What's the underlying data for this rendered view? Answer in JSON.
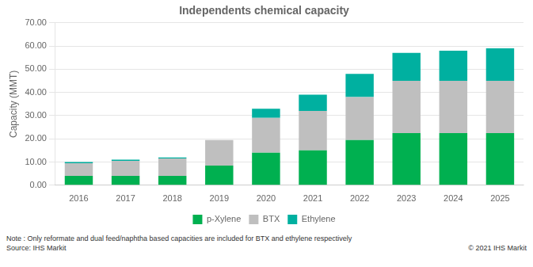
{
  "chart_data": {
    "type": "bar",
    "stacked": true,
    "title": "Independents chemical capacity",
    "ylabel": "Capacity (MMT)",
    "categories": [
      "2016",
      "2017",
      "2018",
      "2019",
      "2020",
      "2021",
      "2022",
      "2023",
      "2024",
      "2025"
    ],
    "series": [
      {
        "name": "p-Xylene",
        "color": "#00b050",
        "values": [
          4.0,
          4.0,
          4.0,
          8.5,
          14.0,
          15.0,
          19.5,
          22.5,
          22.5,
          22.5
        ]
      },
      {
        "name": "BTX",
        "color": "#bfbfbf",
        "values": [
          5.5,
          6.5,
          7.5,
          11.0,
          15.0,
          17.0,
          18.5,
          22.5,
          22.5,
          22.5
        ]
      },
      {
        "name": "Ethylene",
        "color": "#00b0a0",
        "values": [
          0.5,
          0.5,
          0.5,
          0.0,
          4.0,
          7.0,
          10.0,
          12.0,
          13.0,
          14.0
        ]
      }
    ],
    "ylim": [
      0,
      70
    ],
    "yticks": [
      {
        "value": 0,
        "label": "0.00"
      },
      {
        "value": 10,
        "label": "10.00"
      },
      {
        "value": 20,
        "label": "20.00"
      },
      {
        "value": 30,
        "label": "30.00"
      },
      {
        "value": 40,
        "label": "40.00"
      },
      {
        "value": 50,
        "label": "50.00"
      },
      {
        "value": 60,
        "label": "60.00"
      },
      {
        "value": 70,
        "label": "70.00"
      }
    ],
    "grid": true,
    "legend": "bottom",
    "annotations": [
      "Note :  Only reformate and dual feed/naphtha based capacities are  included  for BTX and ethylene respectively",
      "Source:  IHS Markit",
      "© 2021  IHS Markit"
    ]
  }
}
